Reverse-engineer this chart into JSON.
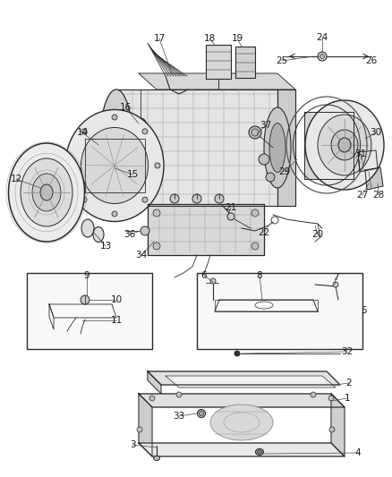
{
  "bg_color": "#ffffff",
  "line_color": "#2a2a2a",
  "label_color": "#1a1a1a",
  "label_fontsize": 7.5,
  "fig_width": 4.38,
  "fig_height": 5.33,
  "dpi": 100,
  "img_extent": [
    0,
    438,
    0,
    533
  ]
}
